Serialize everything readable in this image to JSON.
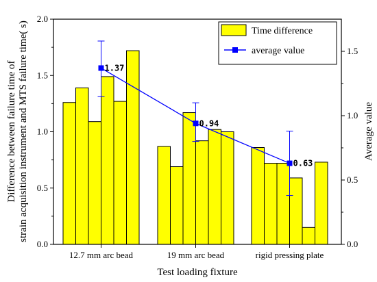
{
  "chart_data": {
    "type": "bar",
    "xlabel": "Test loading fixture",
    "ylabel_left": [
      "Difference between failure time of",
      "strain acquisition instrument and MTS failure time(  s)"
    ],
    "ylabel_right": "Average value",
    "ylim_left": [
      0.0,
      2.0
    ],
    "ylim_right": [
      0.0,
      1.75
    ],
    "yticks_left": [
      "0.0",
      "0.5",
      "1.0",
      "1.5",
      "2.0"
    ],
    "yticks_right": [
      "0.0",
      "0.5",
      "1.0",
      "1.5"
    ],
    "categories": [
      "12.7 mm arc bead",
      "19 mm arc bead",
      "rigid pressing plate"
    ],
    "series": [
      {
        "name": "Time difference",
        "kind": "bar",
        "axis": "left",
        "color": "#ffff00",
        "groups": [
          [
            1.26,
            1.39,
            1.09,
            1.49,
            1.27,
            1.72
          ],
          [
            0.87,
            0.69,
            1.17,
            0.92,
            1.02,
            1.0
          ],
          [
            0.86,
            0.72,
            0.72,
            0.59,
            0.15,
            0.73
          ]
        ]
      },
      {
        "name": "average value",
        "kind": "line",
        "axis": "right",
        "color": "#0000ff",
        "values": [
          1.37,
          0.94,
          0.63
        ],
        "labels": [
          "1.37",
          "0.94",
          "0.63"
        ],
        "error_low": [
          1.15,
          0.8,
          0.38
        ],
        "error_high": [
          1.58,
          1.1,
          0.88
        ]
      }
    ],
    "legend_position": "top-right",
    "grid": false
  }
}
